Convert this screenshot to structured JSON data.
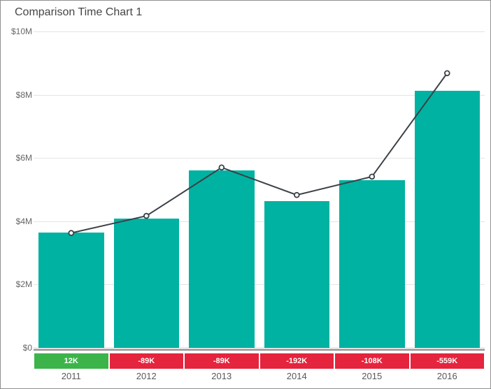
{
  "header": {
    "title": "Comparison Time Chart 1"
  },
  "chart_data": {
    "type": "bar",
    "subtype": "column-with-comparison-line",
    "title": "Comparison Time Chart 1",
    "categories": [
      "2011",
      "2012",
      "2013",
      "2014",
      "2015",
      "2016"
    ],
    "series": [
      {
        "name": "current-period-columns",
        "type": "column",
        "color": "#00b2a1",
        "unit": "$M",
        "values": [
          3.64,
          4.08,
          5.61,
          4.64,
          5.3,
          8.12
        ]
      },
      {
        "name": "comparison-line",
        "type": "line",
        "color": "#3b4047",
        "marker": "circle-white-fill",
        "unit": "$M",
        "values": [
          3.63,
          4.17,
          5.7,
          4.83,
          5.41,
          8.68
        ]
      }
    ],
    "diff_badges": [
      {
        "label": "12K",
        "sentiment": "positive",
        "color": "#3cb44a"
      },
      {
        "label": "-89K",
        "sentiment": "negative",
        "color": "#e5243d"
      },
      {
        "label": "-89K",
        "sentiment": "negative",
        "color": "#e5243d"
      },
      {
        "label": "-192K",
        "sentiment": "negative",
        "color": "#e5243d"
      },
      {
        "label": "-108K",
        "sentiment": "negative",
        "color": "#e5243d"
      },
      {
        "label": "-559K",
        "sentiment": "negative",
        "color": "#e5243d"
      }
    ],
    "xlabel": "",
    "ylabel": "",
    "ylim": [
      0,
      10
    ],
    "y_ticks": [
      {
        "value": 0,
        "label": "$0"
      },
      {
        "value": 2,
        "label": "$2M"
      },
      {
        "value": 4,
        "label": "$4M"
      },
      {
        "value": 6,
        "label": "$6M"
      },
      {
        "value": 8,
        "label": "$8M"
      },
      {
        "value": 10,
        "label": "$10M"
      }
    ],
    "grid": "horizontal",
    "legend": "none",
    "colors": {
      "bar": "#00b2a1",
      "line": "#3b4047",
      "positive_badge": "#3cb44a",
      "negative_badge": "#e5243d",
      "gridline": "#e4e4e4",
      "axis": "#8a8a8a",
      "title_text": "#454545",
      "tick_text": "#666666"
    }
  }
}
